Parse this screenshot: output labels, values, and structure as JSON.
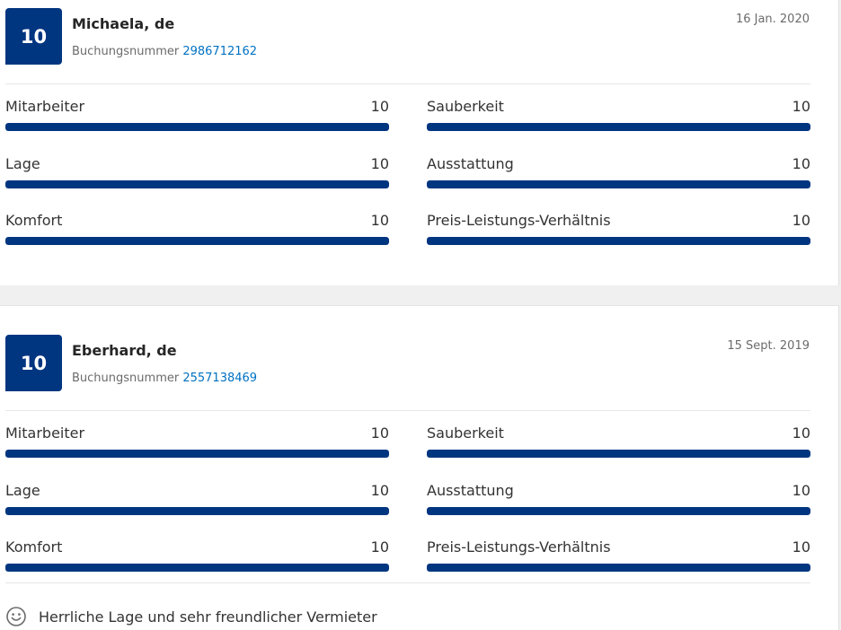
{
  "reviews": [
    {
      "score": "10",
      "name": "Michaela, de",
      "booking_label": "Buchungsnummer",
      "booking_number": "2986712162",
      "date": "16 Jan. 2020",
      "metrics": [
        {
          "label": "Mitarbeiter",
          "score": "10",
          "value": 10,
          "max": 10
        },
        {
          "label": "Sauberkeit",
          "score": "10",
          "value": 10,
          "max": 10
        },
        {
          "label": "Lage",
          "score": "10",
          "value": 10,
          "max": 10
        },
        {
          "label": "Ausstattung",
          "score": "10",
          "value": 10,
          "max": 10
        },
        {
          "label": "Komfort",
          "score": "10",
          "value": 10,
          "max": 10
        },
        {
          "label": "Preis-Leistungs-Verhältnis",
          "score": "10",
          "value": 10,
          "max": 10
        }
      ]
    },
    {
      "score": "10",
      "name": "Eberhard, de",
      "booking_label": "Buchungsnummer",
      "booking_number": "2557138469",
      "date": "15 Sept. 2019",
      "metrics": [
        {
          "label": "Mitarbeiter",
          "score": "10",
          "value": 10,
          "max": 10
        },
        {
          "label": "Sauberkeit",
          "score": "10",
          "value": 10,
          "max": 10
        },
        {
          "label": "Lage",
          "score": "10",
          "value": 10,
          "max": 10
        },
        {
          "label": "Ausstattung",
          "score": "10",
          "value": 10,
          "max": 10
        },
        {
          "label": "Komfort",
          "score": "10",
          "value": 10,
          "max": 10
        },
        {
          "label": "Preis-Leistungs-Verhältnis",
          "score": "10",
          "value": 10,
          "max": 10
        }
      ],
      "positive": {
        "icon": "smile-icon",
        "text": "Herrliche Lage und sehr freundlicher Vermieter"
      }
    }
  ],
  "colors": {
    "score_badge": "#003580",
    "bar_fill": "#003580",
    "booking_link": "#0071c2"
  }
}
